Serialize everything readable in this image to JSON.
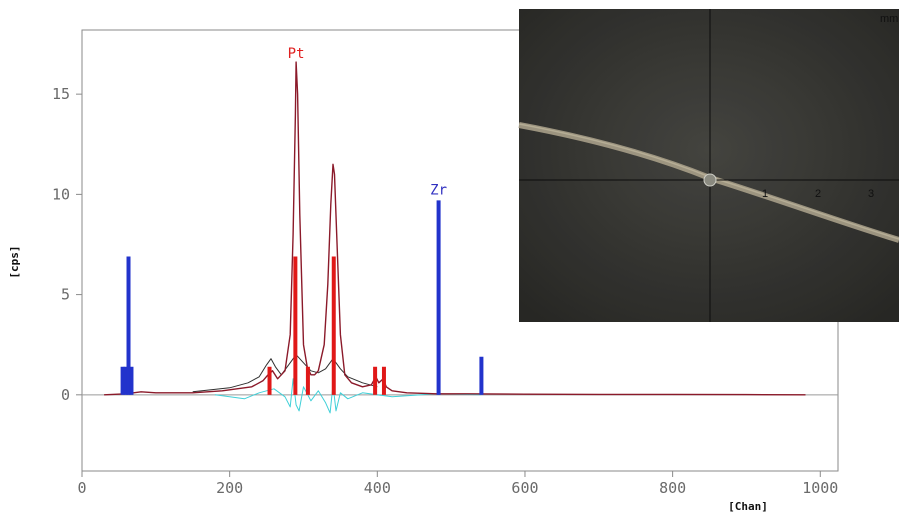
{
  "chart_data": {
    "type": "line",
    "xlabel": "[Chan]",
    "ylabel": "[cps]",
    "xlim": [
      0,
      1024
    ],
    "ylim": [
      -3.8,
      18.2
    ],
    "x_ticks": [
      0,
      200,
      400,
      600,
      800,
      1000
    ],
    "y_ticks": [
      0,
      5,
      10,
      15
    ],
    "peak_labels": [
      {
        "text": "Pt",
        "x": 290,
        "y": 16.8,
        "color": "#e02020"
      },
      {
        "text": "Zr",
        "x": 483,
        "y": 10.0,
        "color": "#3030c0"
      }
    ],
    "spectrum": {
      "color": "#8b1a2a",
      "x": [
        30,
        60,
        80,
        100,
        150,
        190,
        210,
        230,
        245,
        252,
        258,
        265,
        275,
        282,
        286,
        289,
        290,
        292,
        295,
        300,
        305,
        310,
        315,
        320,
        328,
        333,
        337,
        340,
        342,
        345,
        350,
        356,
        365,
        380,
        392,
        398,
        402,
        408,
        412,
        420,
        440,
        480,
        520,
        600,
        700,
        800,
        900,
        980
      ],
      "y": [
        0,
        0.05,
        0.15,
        0.1,
        0.1,
        0.2,
        0.3,
        0.4,
        0.7,
        1.0,
        1.2,
        0.8,
        1.2,
        3.0,
        8.0,
        14.0,
        16.6,
        15.0,
        9.0,
        2.5,
        1.4,
        1.0,
        1.0,
        1.2,
        2.5,
        5.5,
        9.5,
        11.5,
        11.0,
        8.0,
        3.0,
        1.0,
        0.6,
        0.4,
        0.5,
        0.9,
        0.6,
        0.8,
        0.4,
        0.2,
        0.1,
        0.05,
        0.05,
        0.03,
        0.02,
        0.02,
        0.01,
        0
      ]
    },
    "envelope": {
      "color": "#303030",
      "x": [
        150,
        200,
        225,
        240,
        250,
        256,
        262,
        270,
        280,
        290,
        300,
        310,
        320,
        330,
        340,
        350,
        360,
        380,
        400
      ],
      "y": [
        0.15,
        0.35,
        0.6,
        0.9,
        1.5,
        1.8,
        1.4,
        1.0,
        1.5,
        2.0,
        1.6,
        1.2,
        1.1,
        1.3,
        1.8,
        1.3,
        0.9,
        0.6,
        0.4
      ]
    },
    "residual": {
      "color": "#40d0d8",
      "x": [
        180,
        220,
        240,
        260,
        275,
        282,
        286,
        290,
        294,
        300,
        310,
        320,
        330,
        336,
        340,
        344,
        350,
        360,
        380,
        420,
        480,
        540
      ],
      "y": [
        0,
        -0.2,
        0.1,
        0.3,
        -0.1,
        -0.6,
        0.8,
        -0.5,
        -0.8,
        0.4,
        -0.3,
        0.2,
        -0.4,
        -0.9,
        0.5,
        -0.8,
        0.1,
        -0.2,
        0.1,
        -0.1,
        0.05,
        0
      ]
    },
    "line_markers_blue": [
      {
        "x": 55,
        "y": 1.4
      },
      {
        "x": 59,
        "y": 1.4
      },
      {
        "x": 63,
        "y": 6.9
      },
      {
        "x": 67,
        "y": 1.4
      },
      {
        "x": 483,
        "y": 9.7
      },
      {
        "x": 541,
        "y": 1.9
      }
    ],
    "line_markers_red": [
      {
        "x": 254,
        "y": 1.4
      },
      {
        "x": 289,
        "y": 6.9
      },
      {
        "x": 306,
        "y": 1.4
      },
      {
        "x": 341,
        "y": 6.9
      },
      {
        "x": 397,
        "y": 1.4
      },
      {
        "x": 409,
        "y": 1.4
      }
    ]
  },
  "inset_image": {
    "unit_label": "mm",
    "scale_labels": [
      "1",
      "2",
      "3"
    ],
    "background_color": "#3b3b37",
    "fiber_color": "#a79f88"
  }
}
